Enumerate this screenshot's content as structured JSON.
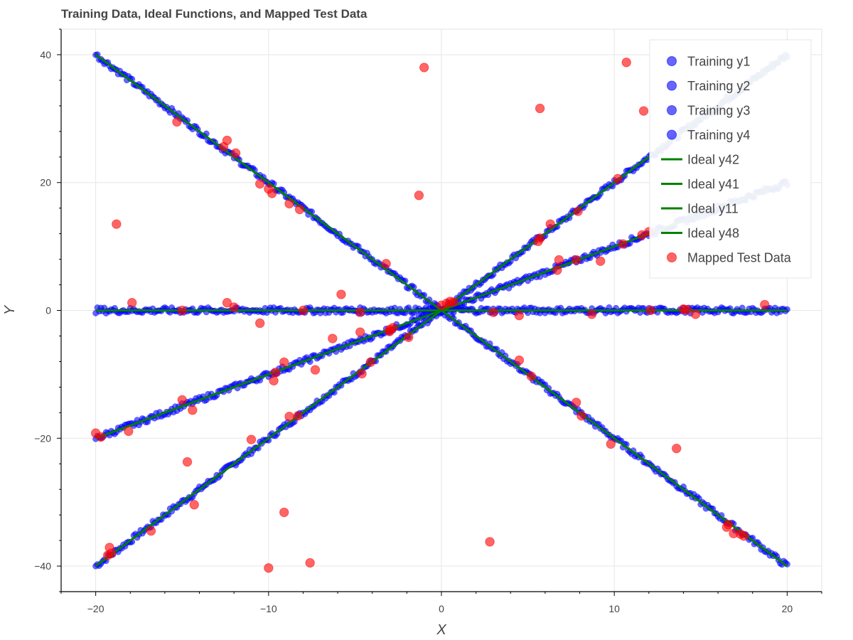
{
  "chart_data": {
    "type": "scatter",
    "title": "Training Data, Ideal Functions, and Mapped Test Data",
    "xlabel": "X",
    "ylabel": "Y",
    "xlim": [
      -22,
      22
    ],
    "ylim": [
      -44,
      44
    ],
    "xticks": [
      -20,
      -10,
      0,
      10,
      20
    ],
    "yticks": [
      -40,
      -20,
      0,
      20,
      40
    ],
    "xtick_labels": [
      "−20",
      "−10",
      "0",
      "10",
      "20"
    ],
    "ytick_labels": [
      "−40",
      "−20",
      "0",
      "20",
      "40"
    ],
    "grid": true,
    "legend_position": "top-right",
    "training_x_range": [
      -20,
      20
    ],
    "series": [
      {
        "name": "Training y1",
        "kind": "scatter",
        "color": "#0000ff",
        "formula": "y = 2x"
      },
      {
        "name": "Training y2",
        "kind": "scatter",
        "color": "#0000ff",
        "formula": "y = -2x"
      },
      {
        "name": "Training y3",
        "kind": "scatter",
        "color": "#0000ff",
        "formula": "y = x"
      },
      {
        "name": "Training y4",
        "kind": "scatter",
        "color": "#0000ff",
        "formula": "y = 0"
      },
      {
        "name": "Ideal y42",
        "kind": "line",
        "color": "#008000",
        "formula": "y = 2x"
      },
      {
        "name": "Ideal y41",
        "kind": "line",
        "color": "#008000",
        "formula": "y = -2x"
      },
      {
        "name": "Ideal y11",
        "kind": "line",
        "color": "#008000",
        "formula": "y = x"
      },
      {
        "name": "Ideal y48",
        "kind": "line",
        "color": "#008000",
        "formula": "y = 0"
      },
      {
        "name": "Mapped Test Data",
        "kind": "scatter",
        "color": "#ff0000"
      }
    ],
    "mapped_test_data": [
      [
        -1.0,
        38.0
      ],
      [
        -1.3,
        18.0
      ],
      [
        -5.8,
        2.5
      ],
      [
        -3.2,
        7.3
      ],
      [
        -12.4,
        26.6
      ],
      [
        -12.6,
        25.6
      ],
      [
        -11.9,
        24.6
      ],
      [
        -15.3,
        29.5
      ],
      [
        -10.5,
        19.8
      ],
      [
        -10.0,
        19.0
      ],
      [
        -9.8,
        18.3
      ],
      [
        -8.8,
        16.7
      ],
      [
        -8.2,
        15.8
      ],
      [
        -18.8,
        13.5
      ],
      [
        -17.9,
        1.2
      ],
      [
        -15.0,
        0.0
      ],
      [
        -12.4,
        1.2
      ],
      [
        -12.0,
        0.5
      ],
      [
        -8.0,
        0.0
      ],
      [
        -10.5,
        -2.0
      ],
      [
        -4.7,
        -0.3
      ],
      [
        -3.0,
        -3.0
      ],
      [
        -3.0,
        -3.3
      ],
      [
        -2.8,
        -2.7
      ],
      [
        -1.9,
        -4.2
      ],
      [
        -4.7,
        -3.4
      ],
      [
        -6.3,
        -4.4
      ],
      [
        -4.6,
        -9.9
      ],
      [
        -4.1,
        -8.1
      ],
      [
        -7.3,
        -9.3
      ],
      [
        -9.7,
        -11.0
      ],
      [
        -9.6,
        -9.7
      ],
      [
        -9.1,
        -8.1
      ],
      [
        -8.8,
        -16.6
      ],
      [
        -8.3,
        -16.5
      ],
      [
        -11.0,
        -20.2
      ],
      [
        -15.0,
        -14.0
      ],
      [
        -14.4,
        -15.6
      ],
      [
        -18.1,
        -18.9
      ],
      [
        -20.0,
        -19.2
      ],
      [
        -19.7,
        -19.8
      ],
      [
        -14.7,
        -23.7
      ],
      [
        -14.3,
        -30.4
      ],
      [
        -16.8,
        -34.5
      ],
      [
        -19.2,
        -37.1
      ],
      [
        -19.3,
        -38.3
      ],
      [
        -19.1,
        -38.0
      ],
      [
        -9.1,
        -31.6
      ],
      [
        -10.0,
        -40.3
      ],
      [
        -7.6,
        -39.5
      ],
      [
        0.0,
        0.8
      ],
      [
        0.3,
        1.1
      ],
      [
        0.5,
        1.4
      ],
      [
        0.7,
        1.3
      ],
      [
        3.0,
        -0.3
      ],
      [
        2.8,
        -36.2
      ],
      [
        4.5,
        -7.8
      ],
      [
        4.5,
        -0.8
      ],
      [
        5.2,
        -10.3
      ],
      [
        5.7,
        31.6
      ],
      [
        5.7,
        11.3
      ],
      [
        5.6,
        10.8
      ],
      [
        6.3,
        13.5
      ],
      [
        7.9,
        15.5
      ],
      [
        6.8,
        7.9
      ],
      [
        6.7,
        6.3
      ],
      [
        7.8,
        7.9
      ],
      [
        9.2,
        7.7
      ],
      [
        8.7,
        -0.6
      ],
      [
        7.8,
        -14.4
      ],
      [
        8.1,
        -16.5
      ],
      [
        9.8,
        -20.9
      ],
      [
        10.2,
        20.6
      ],
      [
        10.7,
        38.8
      ],
      [
        10.5,
        10.4
      ],
      [
        11.7,
        31.2
      ],
      [
        11.6,
        11.8
      ],
      [
        12.0,
        12.3
      ],
      [
        13.6,
        -21.6
      ],
      [
        12.1,
        0.0
      ],
      [
        14.0,
        0.2
      ],
      [
        14.2,
        0.1
      ],
      [
        14.7,
        -0.6
      ],
      [
        16.5,
        -33.9
      ],
      [
        16.6,
        -33.5
      ],
      [
        16.9,
        -34.9
      ],
      [
        17.3,
        -35.0
      ],
      [
        17.5,
        -35.3
      ],
      [
        18.7,
        0.9
      ]
    ]
  }
}
